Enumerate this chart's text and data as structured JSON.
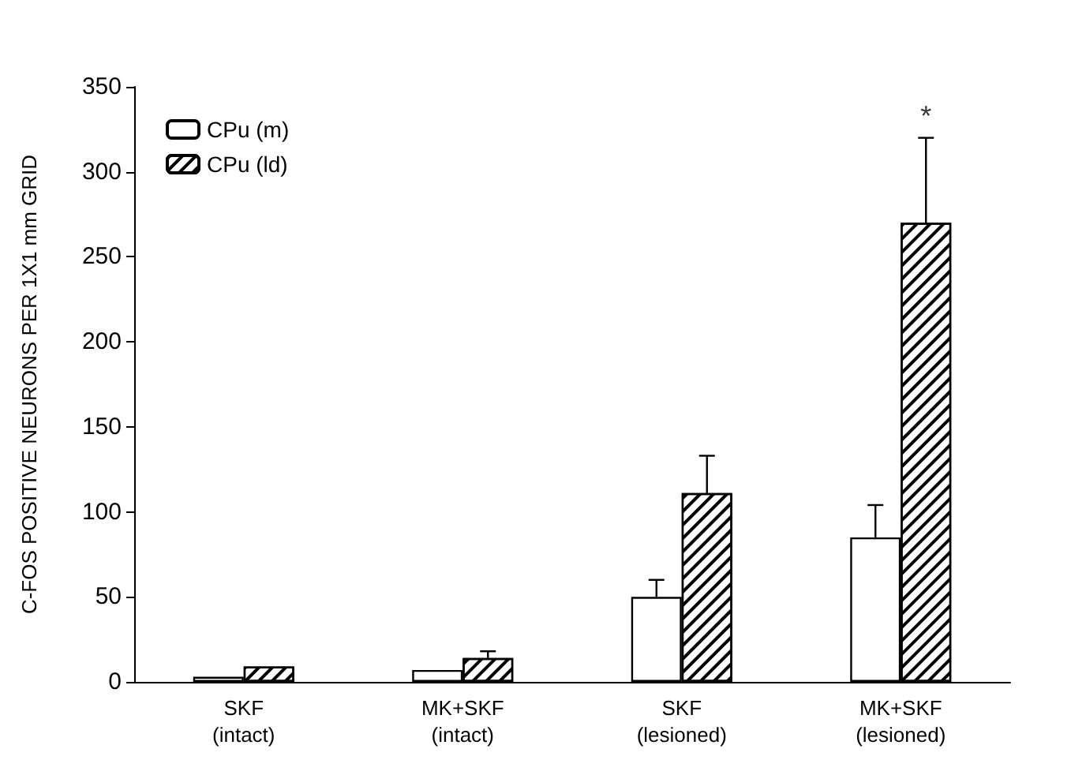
{
  "chart_data": {
    "type": "bar",
    "ylabel": "C-FOS POSITIVE NEURONS PER 1X1 mm GRID",
    "categories": [
      "SKF\n(intact)",
      "MK+SKF\n(intact)",
      "SKF\n(lesioned)",
      "MK+SKF\n(lesioned)"
    ],
    "series": [
      {
        "name": "CPu (m)",
        "color": "#ffffff",
        "values": [
          3,
          7,
          50,
          85
        ],
        "errors": [
          null,
          null,
          10,
          19
        ]
      },
      {
        "name": "CPu (ld)",
        "color": "#ffffff",
        "values": [
          9,
          14,
          111,
          270
        ],
        "errors": [
          null,
          4,
          22,
          50
        ]
      }
    ],
    "ylim": [
      0,
      350
    ],
    "yticks": [
      0,
      50,
      100,
      150,
      200,
      250,
      300,
      350
    ],
    "grid": false,
    "legend": "top left",
    "annotations": [
      "*"
    ]
  }
}
